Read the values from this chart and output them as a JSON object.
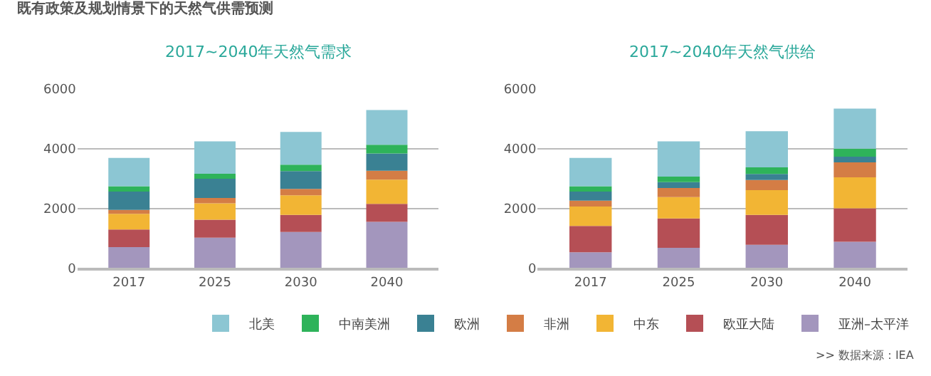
{
  "chart_data": [
    {
      "type": "bar",
      "stacked": true,
      "title": "2017~2040年天然气需求",
      "annotations": [
        "既有政策及规划情景下的天然气供需预测"
      ],
      "categories": [
        "2017",
        "2025",
        "2030",
        "2040"
      ],
      "ylim": [
        0,
        6000
      ],
      "yticks": [
        0,
        2000,
        4000,
        6000
      ],
      "grid": "y",
      "legend": "bottom right",
      "series": [
        {
          "name": "亚洲–太平洋",
          "color": "#a396bd",
          "values": [
            700,
            1020,
            1210,
            1550
          ]
        },
        {
          "name": "欧亚大陆",
          "color": "#b54f55",
          "values": [
            590,
            600,
            570,
            600
          ]
        },
        {
          "name": "中东",
          "color": "#f2b534",
          "values": [
            530,
            550,
            660,
            810
          ]
        },
        {
          "name": "非洲",
          "color": "#d47d45",
          "values": [
            130,
            180,
            210,
            300
          ]
        },
        {
          "name": "欧洲",
          "color": "#3a8193",
          "values": [
            610,
            640,
            600,
            580
          ]
        },
        {
          "name": "中南美洲",
          "color": "#2eb35a",
          "values": [
            180,
            170,
            210,
            290
          ]
        },
        {
          "name": "北美",
          "color": "#8cc6d3",
          "values": [
            950,
            1080,
            1100,
            1160
          ]
        }
      ]
    },
    {
      "type": "bar",
      "stacked": true,
      "title": "2017~2040年天然气供给",
      "annotations": [
        ">> 数据来源：IEA"
      ],
      "categories": [
        "2017",
        "2025",
        "2030",
        "2040"
      ],
      "ylim": [
        0,
        6000
      ],
      "yticks": [
        0,
        2000,
        4000,
        6000
      ],
      "grid": "y",
      "series": [
        {
          "color": "#a396bd",
          "values": [
            530,
            680,
            780,
            880
          ]
        },
        {
          "color": "#b54f55",
          "values": [
            880,
            980,
            1000,
            1120
          ]
        },
        {
          "color": "#f2b534",
          "values": [
            650,
            720,
            830,
            1040
          ]
        },
        {
          "color": "#d47d45",
          "values": [
            200,
            300,
            340,
            500
          ]
        },
        {
          "color": "#3a8193",
          "values": [
            300,
            200,
            200,
            190
          ]
        },
        {
          "color": "#2eb35a",
          "values": [
            180,
            180,
            220,
            270
          ]
        },
        {
          "color": "#8cc6d3",
          "values": [
            950,
            1180,
            1210,
            1340
          ]
        }
      ]
    }
  ]
}
